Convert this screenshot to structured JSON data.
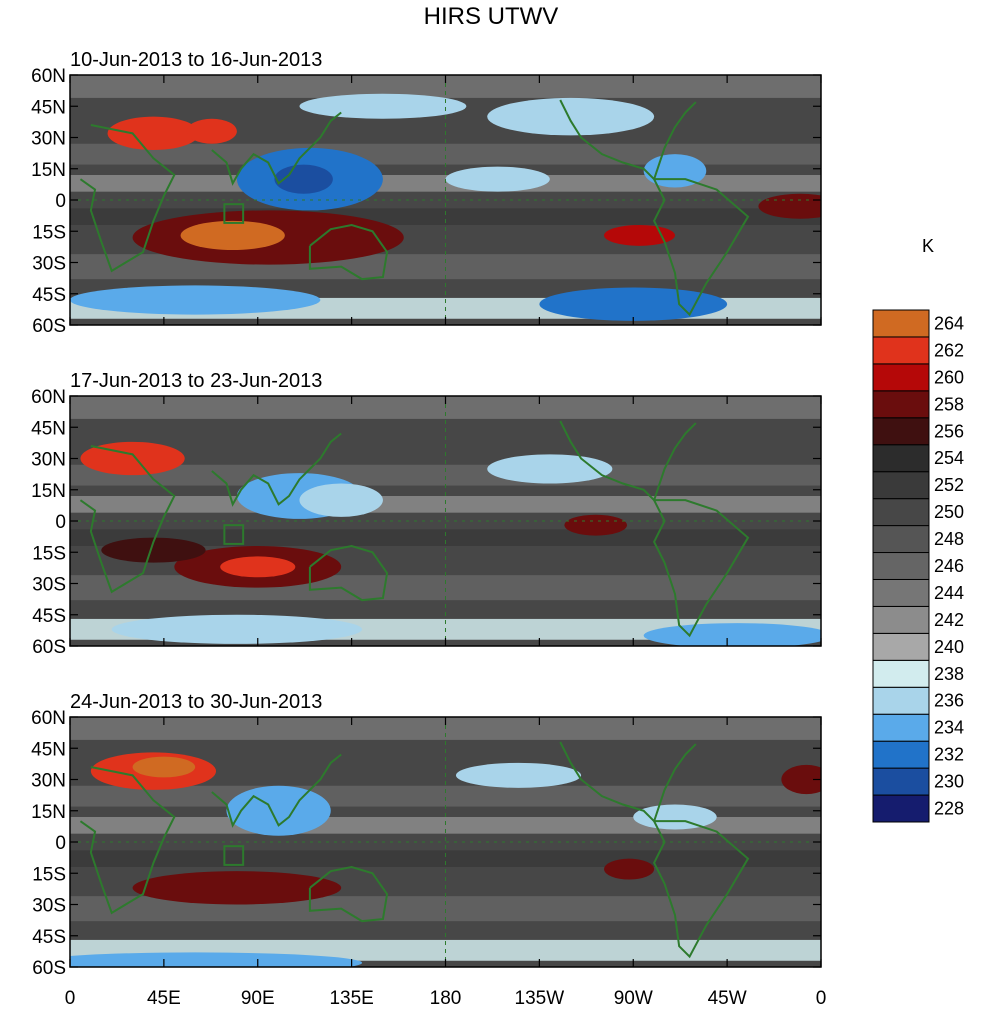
{
  "chart_data": {
    "type": "heatmap",
    "title": "HIRS UTWV",
    "units": "K",
    "panels": [
      {
        "subtitle": "10-Jun-2013 to 16-Jun-2013"
      },
      {
        "subtitle": "17-Jun-2013 to 23-Jun-2013"
      },
      {
        "subtitle": "24-Jun-2013 to 30-Jun-2013"
      }
    ],
    "y_ticks": [
      "60N",
      "45N",
      "30N",
      "15N",
      "0",
      "15S",
      "30S",
      "45S",
      "60S"
    ],
    "y_values": [
      60,
      45,
      30,
      15,
      0,
      -15,
      -30,
      -45,
      -60
    ],
    "x_ticks": [
      "0",
      "45E",
      "90E",
      "135E",
      "180",
      "135W",
      "90W",
      "45W",
      "0"
    ],
    "x_values": [
      0,
      45,
      90,
      135,
      180,
      225,
      270,
      315,
      360
    ],
    "xlim": [
      0,
      360
    ],
    "ylim": [
      -60,
      60
    ],
    "colorbar": {
      "levels": [
        228,
        230,
        232,
        234,
        236,
        238,
        240,
        242,
        244,
        246,
        248,
        250,
        252,
        254,
        256,
        258,
        260,
        262,
        264
      ],
      "labels": [
        "228",
        "230",
        "232",
        "234",
        "236",
        "238",
        "240",
        "242",
        "244",
        "246",
        "248",
        "250",
        "252",
        "254",
        "256",
        "258",
        "260",
        "262",
        "264"
      ],
      "colors": [
        "#151c6e",
        "#1b4ea0",
        "#2173c9",
        "#5aaaea",
        "#a9d4ea",
        "#d2ecee",
        "#a8a8a8",
        "#8c8c8c",
        "#767676",
        "#656565",
        "#555555",
        "#474747",
        "#3a3a3a",
        "#2c2c2c",
        "#3f1010",
        "#6a0d0d",
        "#b50808",
        "#e0331c",
        "#d06a22"
      ]
    },
    "features": [
      [
        {
          "lon": 40,
          "lat": 32,
          "rx": 22,
          "ry": 8,
          "value": 262
        },
        {
          "lon": 68,
          "lat": 33,
          "rx": 12,
          "ry": 6,
          "value": 262
        },
        {
          "lon": 95,
          "lat": -18,
          "rx": 65,
          "ry": 13,
          "value": 258
        },
        {
          "lon": 78,
          "lat": -17,
          "rx": 25,
          "ry": 7,
          "value": 264
        },
        {
          "lon": 350,
          "lat": -3,
          "rx": 20,
          "ry": 6,
          "value": 258
        },
        {
          "lon": 273,
          "lat": -17,
          "rx": 17,
          "ry": 5,
          "value": 260
        },
        {
          "lon": 115,
          "lat": 10,
          "rx": 35,
          "ry": 15,
          "value": 232
        },
        {
          "lon": 112,
          "lat": 10,
          "rx": 14,
          "ry": 7,
          "value": 230
        },
        {
          "lon": 290,
          "lat": 14,
          "rx": 15,
          "ry": 8,
          "value": 234
        },
        {
          "lon": 240,
          "lat": 40,
          "rx": 40,
          "ry": 9,
          "value": 236
        },
        {
          "lon": 150,
          "lat": 45,
          "rx": 40,
          "ry": 6,
          "value": 236
        },
        {
          "lon": 270,
          "lat": -50,
          "rx": 45,
          "ry": 8,
          "value": 232
        },
        {
          "lon": 60,
          "lat": -48,
          "rx": 60,
          "ry": 7,
          "value": 234
        },
        {
          "lon": 205,
          "lat": 10,
          "rx": 25,
          "ry": 6,
          "value": 236
        }
      ],
      [
        {
          "lon": 30,
          "lat": 30,
          "rx": 25,
          "ry": 8,
          "value": 262
        },
        {
          "lon": 90,
          "lat": -22,
          "rx": 40,
          "ry": 10,
          "value": 258
        },
        {
          "lon": 90,
          "lat": -22,
          "rx": 18,
          "ry": 5,
          "value": 262
        },
        {
          "lon": 40,
          "lat": -14,
          "rx": 25,
          "ry": 6,
          "value": 256
        },
        {
          "lon": 252,
          "lat": -2,
          "rx": 15,
          "ry": 5,
          "value": 258
        },
        {
          "lon": 110,
          "lat": 12,
          "rx": 30,
          "ry": 11,
          "value": 234
        },
        {
          "lon": 130,
          "lat": 10,
          "rx": 20,
          "ry": 8,
          "value": 236
        },
        {
          "lon": 320,
          "lat": -55,
          "rx": 45,
          "ry": 6,
          "value": 234
        },
        {
          "lon": 80,
          "lat": -52,
          "rx": 60,
          "ry": 7,
          "value": 236
        },
        {
          "lon": 230,
          "lat": 25,
          "rx": 30,
          "ry": 7,
          "value": 236
        }
      ],
      [
        {
          "lon": 40,
          "lat": 34,
          "rx": 30,
          "ry": 9,
          "value": 262
        },
        {
          "lon": 45,
          "lat": 36,
          "rx": 15,
          "ry": 5,
          "value": 264
        },
        {
          "lon": 80,
          "lat": -22,
          "rx": 50,
          "ry": 8,
          "value": 258
        },
        {
          "lon": 268,
          "lat": -13,
          "rx": 12,
          "ry": 5,
          "value": 258
        },
        {
          "lon": 353,
          "lat": 30,
          "rx": 12,
          "ry": 7,
          "value": 258
        },
        {
          "lon": 100,
          "lat": 15,
          "rx": 25,
          "ry": 12,
          "value": 234
        },
        {
          "lon": 215,
          "lat": 32,
          "rx": 30,
          "ry": 6,
          "value": 236
        },
        {
          "lon": 60,
          "lat": -58,
          "rx": 80,
          "ry": 5,
          "value": 234
        },
        {
          "lon": 290,
          "lat": 12,
          "rx": 20,
          "ry": 6,
          "value": 236
        }
      ]
    ]
  }
}
